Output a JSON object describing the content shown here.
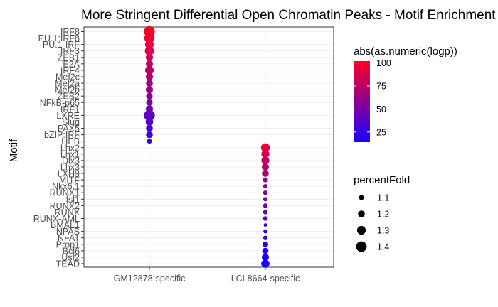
{
  "chart_data": {
    "type": "scatter",
    "title": "More Stringent Differential Open Chromatin Peaks - Motif Enrichment",
    "xlabel": "",
    "ylabel": "Motif",
    "x_categories": [
      "GM12878-specific",
      "LCL8664-specific"
    ],
    "y_categories_top_to_bottom": [
      "IRF8",
      "PU.1:IRF8",
      "PU.1-IRF",
      "IRF3",
      "ZEB1",
      "E2A",
      "IRF4",
      "Mef2c",
      "Mef2a",
      "Mef2b",
      "ZEB2",
      "NFkB-p65",
      "IRF1",
      "LXRE",
      "Slug",
      "PAX5",
      "bZIP:IRF",
      "HEB",
      "Lhx2",
      "Lhx1",
      "Dlx3",
      "Lhx3",
      "LXH9",
      "MITF",
      "Nkx6.1",
      "RUNX1",
      "Isl1",
      "RUNX2",
      "RUNX",
      "RUNX-AML",
      "BMAL1",
      "NPAS",
      "NFAT",
      "Prop1",
      "Bcl6",
      "Usf2",
      "TEAD"
    ],
    "points": [
      {
        "x": "GM12878-specific",
        "y": "IRF8",
        "logp": 101,
        "percentFold": 1.42
      },
      {
        "x": "GM12878-specific",
        "y": "PU.1:IRF8",
        "logp": 96,
        "percentFold": 1.38
      },
      {
        "x": "GM12878-specific",
        "y": "PU.1-IRF",
        "logp": 92,
        "percentFold": 1.3
      },
      {
        "x": "GM12878-specific",
        "y": "IRF3",
        "logp": 88,
        "percentFold": 1.32
      },
      {
        "x": "GM12878-specific",
        "y": "ZEB1",
        "logp": 82,
        "percentFold": 1.22
      },
      {
        "x": "GM12878-specific",
        "y": "E2A",
        "logp": 78,
        "percentFold": 1.22
      },
      {
        "x": "GM12878-specific",
        "y": "IRF4",
        "logp": 74,
        "percentFold": 1.3
      },
      {
        "x": "GM12878-specific",
        "y": "Mef2c",
        "logp": 69,
        "percentFold": 1.22
      },
      {
        "x": "GM12878-specific",
        "y": "Mef2a",
        "logp": 65,
        "percentFold": 1.2
      },
      {
        "x": "GM12878-specific",
        "y": "Mef2b",
        "logp": 61,
        "percentFold": 1.22
      },
      {
        "x": "GM12878-specific",
        "y": "ZEB2",
        "logp": 56,
        "percentFold": 1.18
      },
      {
        "x": "GM12878-specific",
        "y": "NFkB-p65",
        "logp": 52,
        "percentFold": 1.18
      },
      {
        "x": "GM12878-specific",
        "y": "IRF1",
        "logp": 47,
        "percentFold": 1.22
      },
      {
        "x": "GM12878-specific",
        "y": "LXRE",
        "logp": 40,
        "percentFold": 1.42
      },
      {
        "x": "GM12878-specific",
        "y": "Slug",
        "logp": 36,
        "percentFold": 1.24
      },
      {
        "x": "GM12878-specific",
        "y": "PAX5",
        "logp": 32,
        "percentFold": 1.2
      },
      {
        "x": "GM12878-specific",
        "y": "bZIP:IRF",
        "logp": 28,
        "percentFold": 1.2
      },
      {
        "x": "GM12878-specific",
        "y": "HEB",
        "logp": 26,
        "percentFold": 1.1
      },
      {
        "x": "LCL8664-specific",
        "y": "Lhx2",
        "logp": 94,
        "percentFold": 1.3
      },
      {
        "x": "LCL8664-specific",
        "y": "Lhx1",
        "logp": 85,
        "percentFold": 1.26
      },
      {
        "x": "LCL8664-specific",
        "y": "Dlx3",
        "logp": 80,
        "percentFold": 1.26
      },
      {
        "x": "LCL8664-specific",
        "y": "Lhx3",
        "logp": 75,
        "percentFold": 1.22
      },
      {
        "x": "LCL8664-specific",
        "y": "LXH9",
        "logp": 70,
        "percentFold": 1.2
      },
      {
        "x": "LCL8664-specific",
        "y": "MITF",
        "logp": 62,
        "percentFold": 1.1
      },
      {
        "x": "LCL8664-specific",
        "y": "Nkx6.1",
        "logp": 56,
        "percentFold": 1.07
      },
      {
        "x": "LCL8664-specific",
        "y": "RUNX1",
        "logp": 52,
        "percentFold": 1.08
      },
      {
        "x": "LCL8664-specific",
        "y": "Isl1",
        "logp": 48,
        "percentFold": 1.07
      },
      {
        "x": "LCL8664-specific",
        "y": "RUNX2",
        "logp": 44,
        "percentFold": 1.08
      },
      {
        "x": "LCL8664-specific",
        "y": "RUNX",
        "logp": 40,
        "percentFold": 1.08
      },
      {
        "x": "LCL8664-specific",
        "y": "RUNX-AML",
        "logp": 36,
        "percentFold": 1.08
      },
      {
        "x": "LCL8664-specific",
        "y": "BMAL1",
        "logp": 32,
        "percentFold": 1.02
      },
      {
        "x": "LCL8664-specific",
        "y": "NPAS",
        "logp": 28,
        "percentFold": 1.05
      },
      {
        "x": "LCL8664-specific",
        "y": "NFAT",
        "logp": 24,
        "percentFold": 1.08
      },
      {
        "x": "LCL8664-specific",
        "y": "Prop1",
        "logp": 21,
        "percentFold": 1.14
      },
      {
        "x": "LCL8664-specific",
        "y": "Bcl6",
        "logp": 19,
        "percentFold": 1.16
      },
      {
        "x": "LCL8664-specific",
        "y": "Usf2",
        "logp": 17,
        "percentFold": 1.22
      },
      {
        "x": "LCL8664-specific",
        "y": "TEAD",
        "logp": 15,
        "percentFold": 1.28
      }
    ],
    "color_legend": {
      "title": "abs(as.numeric(logp))",
      "ticks": [
        25,
        50,
        75,
        100
      ],
      "range": [
        14,
        102
      ],
      "low_color": "#1a00ff",
      "high_color": "#ff0022"
    },
    "size_legend": {
      "title": "percentFold",
      "ticks": [
        1.1,
        1.2,
        1.3,
        1.4
      ]
    },
    "grid": true,
    "legend_position": "right",
    "colors": {
      "panel_border": "#333333",
      "grid": "#ebebeb",
      "axis_text": "#4d4d4d",
      "title": "#000000"
    }
  }
}
